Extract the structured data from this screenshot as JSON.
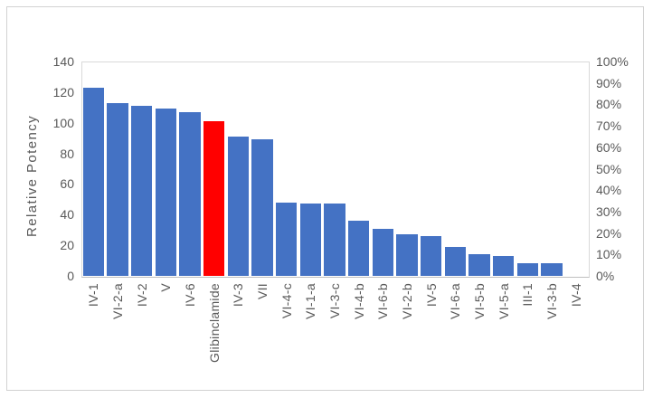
{
  "figure": {
    "background": "#ffffff",
    "border_color": "#d2d2d2"
  },
  "chart_data": {
    "type": "bar",
    "title": "",
    "xlabel": "",
    "ylabel": "Relative Potency",
    "categories": [
      "IV-1",
      "VI-2-a",
      "IV-2",
      "V",
      "IV-6",
      "Glibinclamide",
      "IV-3",
      "VII",
      "VI-4-c",
      "VI-1-a",
      "VI-3-c",
      "VI-4-b",
      "VI-6-b",
      "VI-2-b",
      "IV-5",
      "VI-6-a",
      "VI-5-b",
      "VI-5-a",
      "III-1",
      "VI-3-b",
      "IV-4"
    ],
    "values": [
      123,
      113,
      111,
      109,
      107,
      101,
      91,
      89,
      48,
      47,
      47,
      36,
      31,
      27,
      26,
      19,
      14,
      13,
      8,
      8,
      0
    ],
    "highlight_category": "Glibinclamide",
    "left_axis": {
      "min": 0,
      "max": 140,
      "step": 20,
      "tick_labels": [
        "0",
        "20",
        "40",
        "60",
        "80",
        "100",
        "120",
        "140"
      ]
    },
    "right_axis": {
      "tick_labels_top_to_bottom": [
        "100%",
        "90%",
        "80%",
        "70%",
        "60%",
        "50%",
        "40%",
        "30%",
        "20%",
        "10%",
        "0%"
      ]
    },
    "grid": true,
    "legend_position": "none",
    "colors": {
      "bar": "#4472c4",
      "highlight": "#ff0000",
      "gridline": "#d9d9d9",
      "axis_line": "#bfbfbf",
      "tick_text": "#595959"
    }
  }
}
